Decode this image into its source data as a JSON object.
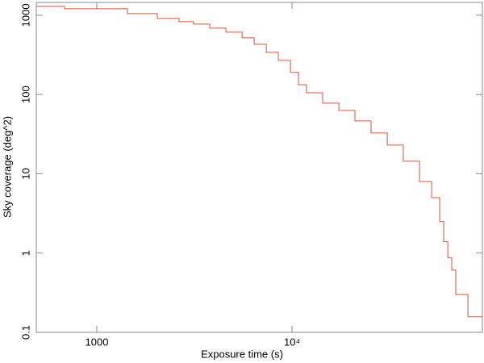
{
  "chart_data": {
    "type": "step",
    "xlabel": "Exposure time (s)",
    "ylabel": "Sky coverage (deg^2)",
    "xscale": "log",
    "yscale": "log",
    "xlim": [
      490,
      94400
    ],
    "ylim": [
      0.1,
      1450
    ],
    "xticks": [
      1000,
      {
        "value": 10000,
        "label": "10⁴"
      }
    ],
    "yticks": [
      0.1,
      1,
      10,
      100,
      1000
    ],
    "color": "#e0503c",
    "x": [
      490,
      684,
      1435,
      2043,
      2637,
      3130,
      3790,
      4585,
      5550,
      6400,
      7380,
      8510,
      9820,
      10800,
      11860,
      14350,
      17380,
      21000,
      25400,
      30750,
      37150,
      45000,
      51900,
      57050,
      59800,
      62800,
      65800,
      69000,
      79600,
      94400
    ],
    "values": [
      1295,
      1206,
      1048,
      910,
      829,
      773,
      687,
      611,
      519,
      430,
      340,
      269,
      190,
      133,
      105,
      77.8,
      63,
      46.5,
      32.7,
      23,
      14.4,
      8,
      5,
      2.5,
      1.39,
      0.87,
      0.61,
      0.3,
      0.157,
      0.157
    ]
  }
}
